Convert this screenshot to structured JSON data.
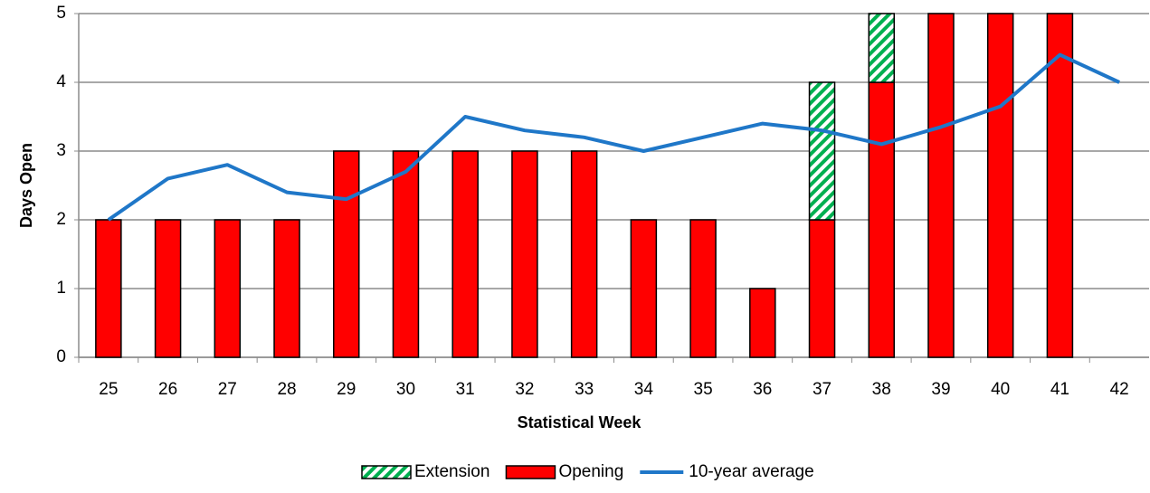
{
  "chart_data": {
    "type": "bar",
    "x_label": "Statistical Week",
    "y_label": "Days Open",
    "categories": [
      "25",
      "26",
      "27",
      "28",
      "29",
      "30",
      "31",
      "32",
      "33",
      "34",
      "35",
      "36",
      "37",
      "38",
      "39",
      "40",
      "41",
      "42"
    ],
    "series": [
      {
        "name": "Extension",
        "type": "bar",
        "color": "#00b050",
        "pattern": "hatch",
        "values": [
          null,
          null,
          null,
          null,
          null,
          null,
          null,
          null,
          null,
          null,
          null,
          null,
          2,
          1,
          null,
          null,
          null,
          null
        ]
      },
      {
        "name": "Opening",
        "type": "bar",
        "color": "#ff0000",
        "values": [
          2,
          2,
          2,
          2,
          3,
          3,
          3,
          3,
          3,
          2,
          2,
          1,
          2,
          4,
          5,
          5,
          5,
          null
        ]
      },
      {
        "name": "10-year average",
        "type": "line",
        "color": "#1f77c8",
        "values": [
          2.0,
          2.6,
          2.8,
          2.4,
          2.3,
          2.7,
          3.5,
          3.3,
          3.2,
          3.0,
          3.2,
          3.4,
          3.3,
          3.1,
          3.35,
          3.65,
          4.4,
          4.0
        ]
      }
    ],
    "ylim": [
      0,
      5
    ],
    "yticks": [
      0,
      1,
      2,
      3,
      4,
      5
    ],
    "grid": true,
    "legend": "bottom"
  }
}
